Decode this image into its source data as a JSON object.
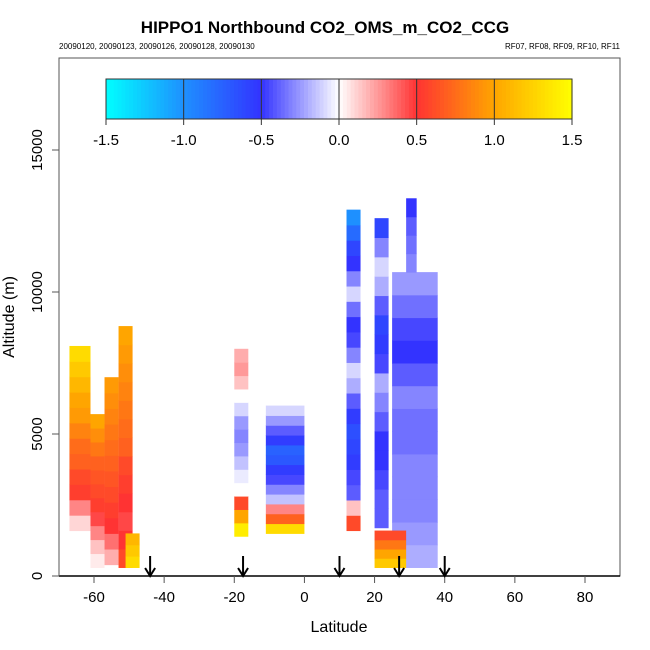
{
  "chart_data": {
    "type": "heatmap",
    "title": "HIPPO1 Northbound CO2_OMS_m_CO2_CCG",
    "subtitle_left": "20090120, 20090123, 20090126, 20090128, 20090130",
    "subtitle_right": "RF07, RF08, RF09, RF10, RF11",
    "xlabel": "Latitude",
    "ylabel": "Altitude (m)",
    "xlim": [
      -70,
      90
    ],
    "ylim": [
      0,
      18200
    ],
    "x_ticks": [
      -60,
      -40,
      -20,
      0,
      20,
      40,
      60,
      80
    ],
    "x_tick_labels": [
      "-60",
      "-40",
      "-20",
      "0",
      "20",
      "40",
      "60",
      "80"
    ],
    "y_ticks": [
      0,
      5000,
      10000,
      15000
    ],
    "y_tick_labels": [
      "0",
      "5000",
      "10000",
      "15000"
    ],
    "colorbar": {
      "range": [
        -1.5,
        1.5
      ],
      "ticks": [
        -1.5,
        -1.0,
        -0.5,
        0.0,
        0.5,
        1.0,
        1.5
      ],
      "tick_labels": [
        "-1.5",
        "-1.0",
        "-0.5",
        "0.0",
        "0.5",
        "1.0",
        "1.5"
      ],
      "colors": [
        "#00ffff",
        "#1e90ff",
        "#3333ff",
        "#ffffff",
        "#ff3333",
        "#ffa500",
        "#ffff00"
      ]
    },
    "flight_arrows_latitude": [
      -44,
      -17.5,
      10,
      27,
      40
    ],
    "columns": [
      {
        "lat0": -67,
        "lat1": -61,
        "alt0": 1600,
        "alt1": 8100,
        "values_bottom_to_top": [
          0.1,
          0.3,
          0.55,
          0.6,
          0.7,
          0.75,
          0.85,
          0.95,
          1.0,
          1.1,
          1.2,
          1.3
        ]
      },
      {
        "lat0": -61,
        "lat1": -57,
        "alt0": 300,
        "alt1": 5700,
        "values_bottom_to_top": [
          0.05,
          0.15,
          0.3,
          0.45,
          0.55,
          0.6,
          0.65,
          0.7,
          0.8,
          0.9,
          1.0
        ]
      },
      {
        "lat0": -57,
        "lat1": -53,
        "alt0": 400,
        "alt1": 7000,
        "values_bottom_to_top": [
          0.2,
          0.35,
          0.5,
          0.55,
          0.6,
          0.65,
          0.7,
          0.75,
          0.8,
          0.85,
          0.9,
          0.95
        ]
      },
      {
        "lat0": -53,
        "lat1": -49,
        "alt0": 300,
        "alt1": 8800,
        "values_bottom_to_top": [
          0.6,
          0.5,
          0.45,
          0.5,
          0.55,
          0.6,
          0.7,
          0.75,
          0.8,
          0.85,
          0.9,
          0.95,
          1.0
        ]
      },
      {
        "lat0": -51,
        "lat1": -47,
        "alt0": 300,
        "alt1": 1500,
        "values_bottom_to_top": [
          1.3,
          1.2,
          1.1
        ]
      },
      {
        "lat0": -20,
        "lat1": -16,
        "alt0": 1400,
        "alt1": 8000,
        "values_bottom_to_top": [
          1.4,
          1.0,
          0.6,
          0.0,
          -0.05,
          -0.15,
          -0.25,
          -0.3,
          -0.25,
          -0.1,
          0.0,
          0.15,
          0.25,
          0.2
        ]
      },
      {
        "lat0": -11,
        "lat1": 0,
        "alt0": 1500,
        "alt1": 6000,
        "values_bottom_to_top": [
          1.3,
          0.7,
          0.3,
          -0.15,
          -0.3,
          -0.45,
          -0.55,
          -0.7,
          -0.75,
          -0.55,
          -0.4,
          -0.25,
          -0.1
        ]
      },
      {
        "lat0": 12,
        "lat1": 16,
        "alt0": 1600,
        "alt1": 12900,
        "values_bottom_to_top": [
          0.6,
          0.15,
          -0.4,
          -0.45,
          -0.55,
          -0.6,
          -0.65,
          -0.55,
          -0.4,
          -0.2,
          -0.1,
          -0.3,
          -0.45,
          -0.5,
          -0.35,
          -0.1,
          -0.3,
          -0.5,
          -0.6,
          -0.8,
          -1.0
        ]
      },
      {
        "lat0": 20,
        "lat1": 24,
        "alt0": 1700,
        "alt1": 12600,
        "values_bottom_to_top": [
          -0.4,
          -0.4,
          -0.45,
          -0.5,
          -0.5,
          -0.4,
          -0.3,
          -0.2,
          -0.45,
          -0.55,
          -0.6,
          -0.4,
          -0.2,
          -0.1,
          -0.3,
          -0.6
        ]
      },
      {
        "lat0": 25,
        "lat1": 38,
        "alt0": 300,
        "alt1": 10700,
        "values_bottom_to_top": [
          -0.2,
          -0.25,
          -0.3,
          -0.3,
          -0.3,
          -0.35,
          -0.35,
          -0.3,
          -0.4,
          -0.5,
          -0.45,
          -0.35,
          -0.25
        ]
      },
      {
        "lat0": 29,
        "lat1": 32,
        "alt0": 10700,
        "alt1": 13300,
        "values_bottom_to_top": [
          -0.3,
          -0.35,
          -0.4,
          -0.5
        ]
      },
      {
        "lat0": 20,
        "lat1": 29,
        "alt0": 300,
        "alt1": 1600,
        "values_bottom_to_top": [
          1.2,
          1.0,
          0.8,
          0.6
        ]
      }
    ]
  }
}
